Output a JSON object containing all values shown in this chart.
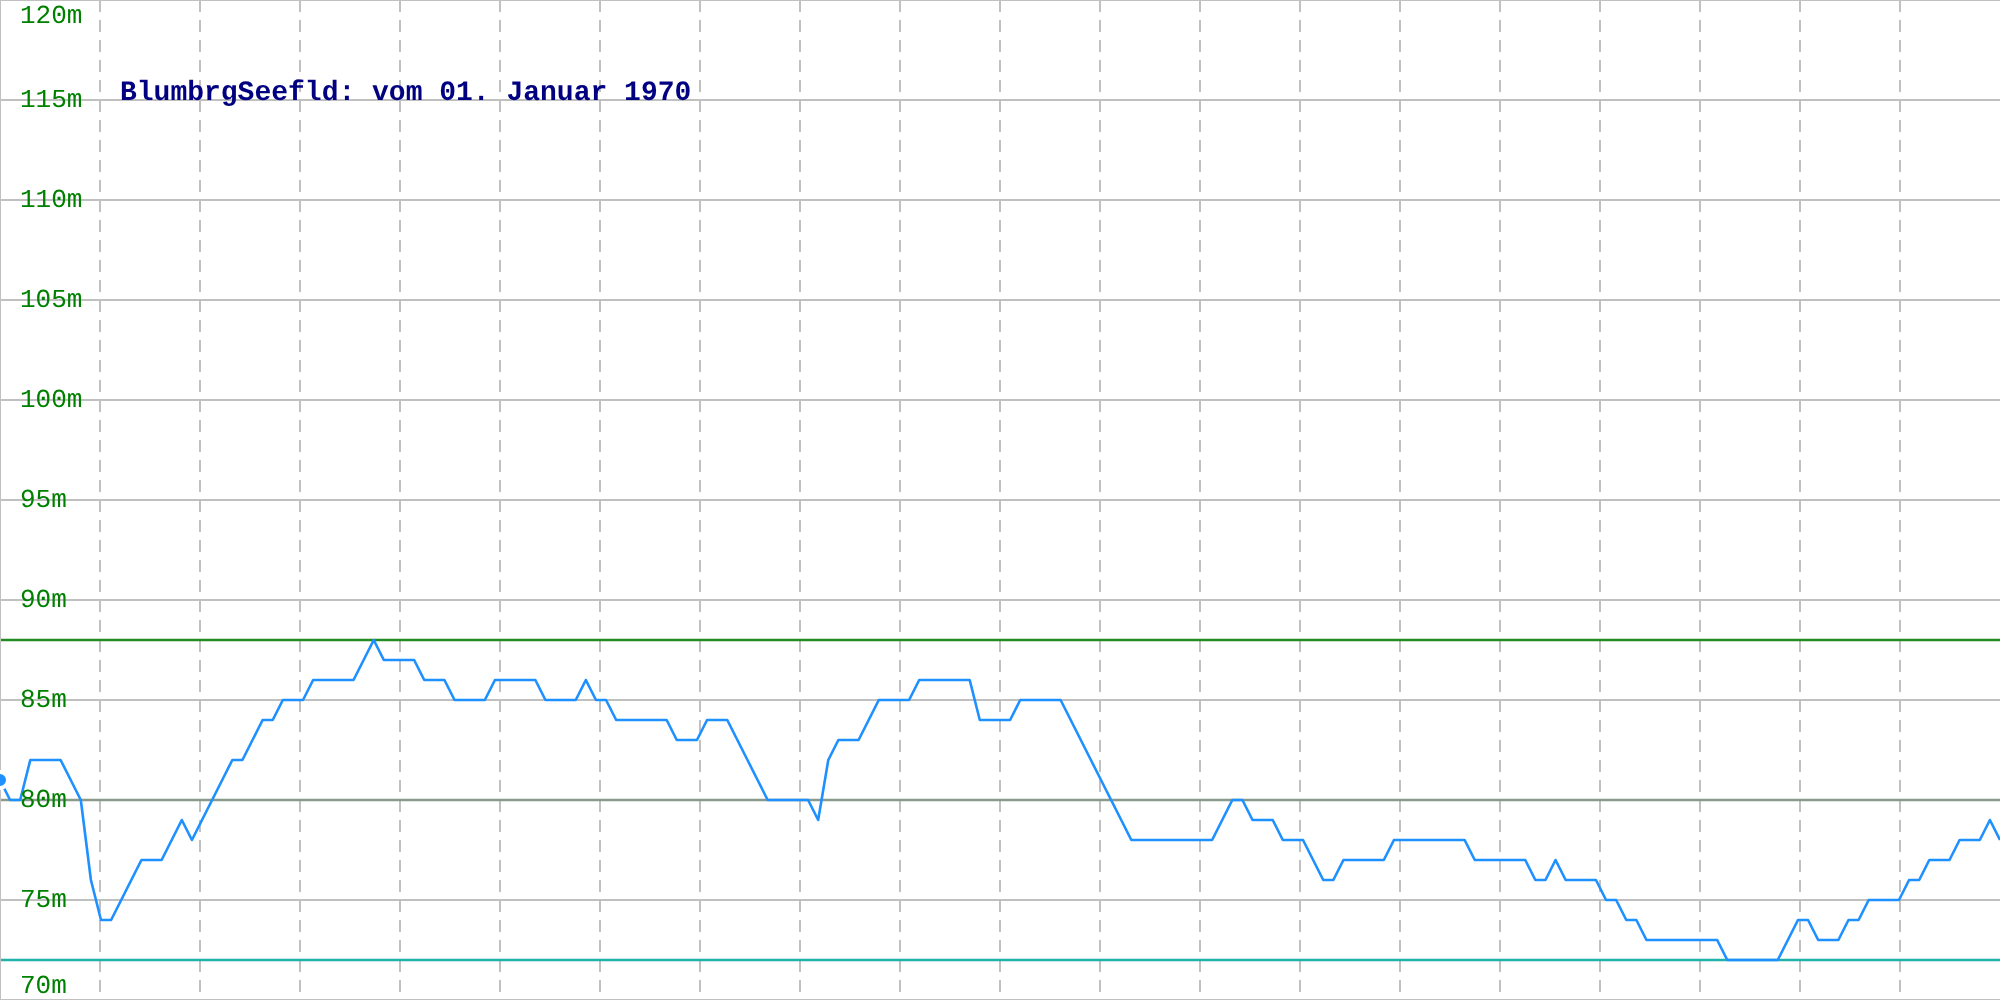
{
  "chart_data": {
    "type": "line",
    "title": "BlumbrgSeefld: vom 01. Januar 1970",
    "categories": [
      null,
      null,
      null,
      null,
      null,
      null,
      null,
      null,
      null,
      null,
      null,
      null,
      null,
      null,
      null,
      null,
      null,
      null,
      null,
      null,
      null,
      null,
      null,
      null,
      null,
      null,
      null,
      null,
      null,
      null,
      null,
      null,
      null,
      null,
      null,
      null,
      null,
      null,
      null,
      null,
      null,
      null,
      null,
      null,
      null,
      null,
      null,
      null,
      null,
      null,
      null,
      null,
      null,
      null,
      null,
      null,
      null,
      null,
      null,
      null,
      null,
      null,
      null,
      null,
      null,
      null,
      null,
      null,
      null,
      null,
      null,
      null,
      null,
      null,
      null,
      null,
      null,
      null,
      null,
      null,
      null,
      null,
      null,
      null,
      null,
      null,
      null,
      null,
      null,
      null,
      null,
      null,
      null,
      null,
      null,
      null,
      null,
      null,
      null,
      null,
      null,
      null,
      null,
      null,
      null,
      null,
      null,
      null,
      null,
      null,
      null,
      null,
      null,
      null,
      null,
      null,
      null,
      null,
      null,
      null,
      null,
      null,
      null,
      null,
      null,
      null,
      null,
      null,
      null,
      null,
      null,
      null,
      null,
      null,
      null,
      null,
      null,
      null,
      null,
      null,
      null,
      null,
      null,
      null,
      null,
      null,
      null,
      null,
      null,
      null,
      null,
      null,
      null,
      null,
      null,
      null,
      null,
      null,
      null,
      null,
      null,
      null,
      null,
      null,
      null,
      null,
      null,
      null,
      null,
      null,
      null,
      null,
      null,
      null,
      null,
      null,
      null,
      null,
      null,
      null,
      null,
      null,
      null,
      null,
      null,
      null,
      null,
      null,
      null,
      null,
      null,
      null,
      null,
      null,
      null,
      null,
      null,
      null,
      null
    ],
    "series": [
      {
        "color": "#1e90ff",
        "values": [
          81,
          80,
          80,
          82,
          82,
          82,
          82,
          81,
          80,
          76,
          74,
          74,
          75,
          76,
          77,
          77,
          77,
          78,
          79,
          78,
          79,
          80,
          81,
          82,
          82,
          83,
          84,
          84,
          85,
          85,
          85,
          86,
          86,
          86,
          86,
          86,
          87,
          88,
          87,
          87,
          87,
          87,
          86,
          86,
          86,
          85,
          85,
          85,
          85,
          86,
          86,
          86,
          86,
          86,
          85,
          85,
          85,
          85,
          86,
          85,
          85,
          84,
          84,
          84,
          84,
          84,
          84,
          83,
          83,
          83,
          84,
          84,
          84,
          83,
          82,
          81,
          80,
          80,
          80,
          80,
          80,
          79,
          82,
          83,
          83,
          83,
          84,
          85,
          85,
          85,
          85,
          86,
          86,
          86,
          86,
          86,
          86,
          84,
          84,
          84,
          84,
          85,
          85,
          85,
          85,
          85,
          84,
          83,
          82,
          81,
          80,
          79,
          78,
          78,
          78,
          78,
          78,
          78,
          78,
          78,
          78,
          79,
          80,
          80,
          79,
          79,
          79,
          78,
          78,
          78,
          77,
          76,
          76,
          77,
          77,
          77,
          77,
          77,
          78,
          78,
          78,
          78,
          78,
          78,
          78,
          78,
          77,
          77,
          77,
          77,
          77,
          77,
          76,
          76,
          77,
          76,
          76,
          76,
          76,
          75,
          75,
          74,
          74,
          73,
          73,
          73,
          73,
          73,
          73,
          73,
          73,
          72,
          72,
          72,
          72,
          72,
          72,
          73,
          74,
          74,
          73,
          73,
          73,
          74,
          74,
          75,
          75,
          75,
          75,
          76,
          76,
          77,
          77,
          77,
          78,
          78,
          78,
          79,
          78
        ]
      }
    ],
    "ylim": [
      70,
      120
    ],
    "yticks": [
      {
        "value": 70,
        "label": "70m"
      },
      {
        "value": 75,
        "label": "75m"
      },
      {
        "value": 80,
        "label": "80m"
      },
      {
        "value": 85,
        "label": "85m"
      },
      {
        "value": 90,
        "label": "90m"
      },
      {
        "value": 95,
        "label": "95m"
      },
      {
        "value": 100,
        "label": "100m"
      },
      {
        "value": 105,
        "label": "105m"
      },
      {
        "value": 110,
        "label": "110m"
      },
      {
        "value": 115,
        "label": "115m"
      },
      {
        "value": 120,
        "label": "120m"
      }
    ],
    "ref_lines": [
      {
        "axis": "y",
        "value": 88,
        "color": "#228b22"
      },
      {
        "axis": "y",
        "value": 80,
        "color": "#8a9a8a"
      },
      {
        "axis": "y",
        "value": 72,
        "color": "#20b2aa"
      }
    ],
    "grid": true,
    "tick_labels": "y"
  }
}
